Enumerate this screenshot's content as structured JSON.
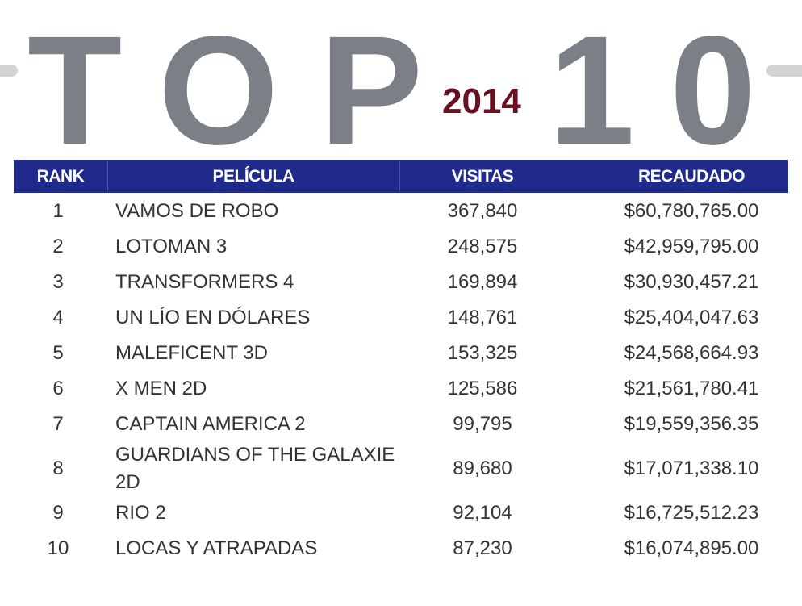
{
  "title_letters": [
    "T",
    "O",
    "P",
    "1",
    "0"
  ],
  "year": "2014",
  "colors": {
    "header_bg": "#1f2a8c",
    "title_gray": "#7b8086",
    "year_maroon": "#6a0f20",
    "text": "#333333"
  },
  "chart_data": {
    "type": "table",
    "columns": [
      "RANK",
      "PELÍCULA",
      "VISITAS",
      "RECAUDADO"
    ],
    "rows": [
      {
        "rank": "1",
        "title": "VAMOS DE ROBO",
        "visits": "367,840",
        "gross": "$60,780,765.00"
      },
      {
        "rank": "2",
        "title": "LOTOMAN 3",
        "visits": "248,575",
        "gross": "$42,959,795.00"
      },
      {
        "rank": "3",
        "title": "TRANSFORMERS 4",
        "visits": "169,894",
        "gross": "$30,930,457.21"
      },
      {
        "rank": "4",
        "title": "UN LÍO EN DÓLARES",
        "visits": "148,761",
        "gross": "$25,404,047.63"
      },
      {
        "rank": "5",
        "title": "MALEFICENT 3D",
        "visits": "153,325",
        "gross": "$24,568,664.93"
      },
      {
        "rank": "6",
        "title": "X MEN 2D",
        "visits": "125,586",
        "gross": "$21,561,780.41"
      },
      {
        "rank": "7",
        "title": "CAPTAIN AMERICA 2",
        "visits": "99,795",
        "gross": "$19,559,356.35"
      },
      {
        "rank": "8",
        "title": "GUARDIANS OF THE GALAXIE 2D",
        "visits": "89,680",
        "gross": "$17,071,338.10"
      },
      {
        "rank": "9",
        "title": "RIO 2",
        "visits": "92,104",
        "gross": "$16,725,512.23"
      },
      {
        "rank": "10",
        "title": "LOCAS Y ATRAPADAS",
        "visits": "87,230",
        "gross": "$16,074,895.00"
      }
    ]
  }
}
